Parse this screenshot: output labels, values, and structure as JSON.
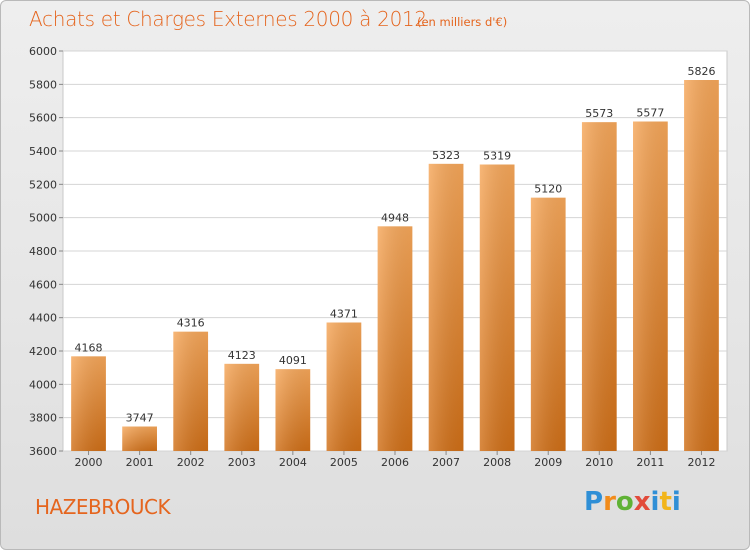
{
  "header": {
    "title": "Achats et Charges Externes 2000 à 2012",
    "unit": "(en milliers d'€)"
  },
  "footer": {
    "city": "HAZEBROUCK",
    "logo": "Proxiti",
    "logo_colors": [
      "#2f8fd6",
      "#f28c1b",
      "#5fb235",
      "#e24b3b",
      "#2f8fd6",
      "#f2b51b"
    ]
  },
  "colors": {
    "accent": "#e5651e",
    "bar_top": "#f6a75a",
    "bar_bottom": "#d06f17"
  },
  "chart_data": {
    "type": "bar",
    "categories": [
      "2000",
      "2001",
      "2002",
      "2003",
      "2004",
      "2005",
      "2006",
      "2007",
      "2008",
      "2009",
      "2010",
      "2011",
      "2012"
    ],
    "values": [
      4168,
      3747,
      4316,
      4123,
      4091,
      4371,
      4948,
      5323,
      5319,
      5120,
      5573,
      5577,
      5826
    ],
    "ylim": [
      3600,
      6000
    ],
    "yticks": [
      3600,
      3800,
      4000,
      4200,
      4400,
      4600,
      4800,
      5000,
      5200,
      5400,
      5600,
      5800,
      6000
    ],
    "grid": true,
    "title": "Achats et Charges Externes 2000 à 2012",
    "xlabel": "",
    "ylabel": ""
  }
}
